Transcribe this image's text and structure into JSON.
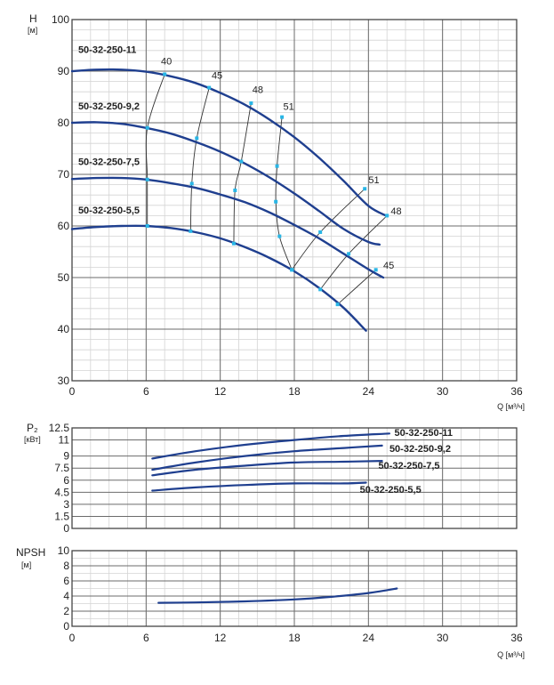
{
  "colors": {
    "curve": "#1f3f8f",
    "marker": "#29b6e6",
    "efficiency": "#333333",
    "grid_major": "#6b6b6b",
    "grid_minor": "#d4d4d4"
  },
  "chart_data": [
    {
      "id": "head",
      "type": "line",
      "y_title": "Н",
      "y_unit": "[м]",
      "x_title": "Q [м³/ч]",
      "xlim": [
        0,
        36
      ],
      "ylim": [
        30,
        100
      ],
      "x_ticks": [
        "0",
        "6",
        "12",
        "18",
        "24",
        "30",
        "36"
      ],
      "y_ticks": [
        "30",
        "40",
        "50",
        "60",
        "70",
        "80",
        "90",
        "100"
      ],
      "series": [
        {
          "name": "50-32-250-11",
          "x": [
            0,
            2,
            4,
            6,
            8,
            10,
            12,
            14,
            16,
            18,
            20,
            22,
            24,
            25.5
          ],
          "values": [
            90,
            90.3,
            90.3,
            89.9,
            89.0,
            87.7,
            85.8,
            83.5,
            80.6,
            77.2,
            73.2,
            68.7,
            63.9,
            61.9
          ],
          "label_value_x": 0.5,
          "label_value_y": 93.5
        },
        {
          "name": "50-32-250-9,2",
          "x": [
            0,
            2,
            4,
            6,
            8,
            10,
            12,
            14,
            16,
            18,
            20,
            22,
            24,
            24.9
          ],
          "values": [
            80,
            80.1,
            79.8,
            79.0,
            77.9,
            76.3,
            74.4,
            72.1,
            69.4,
            66.3,
            62.9,
            59.4,
            56.9,
            56.4
          ],
          "label_value_x": 0.5,
          "label_value_y": 82.6
        },
        {
          "name": "50-32-250-7,5",
          "x": [
            0,
            2,
            4,
            6,
            8,
            10,
            12,
            14,
            16,
            18,
            20,
            22,
            24,
            25.2
          ],
          "values": [
            69.1,
            69.3,
            69.3,
            69.0,
            68.3,
            67.4,
            66.1,
            64.6,
            62.6,
            60.2,
            57.6,
            54.6,
            51.6,
            50.0
          ],
          "label_value_x": 0.5,
          "label_value_y": 71.8
        },
        {
          "name": "50-32-250-5,5",
          "x": [
            0,
            2,
            4,
            6,
            8,
            10,
            12,
            14,
            16,
            18,
            20,
            22,
            23.8
          ],
          "values": [
            59.4,
            59.8,
            60.0,
            60.0,
            59.6,
            58.8,
            57.6,
            55.9,
            53.8,
            51.2,
            48.0,
            44.1,
            39.7
          ],
          "label_value_x": 0.5,
          "label_value_y": 62.4
        }
      ],
      "efficiency_points": [
        {
          "label": "40",
          "points": [
            [
              7.5,
              89.4
            ],
            [
              6.1,
              79.0
            ],
            [
              6.1,
              69.0
            ],
            [
              6.1,
              60.0
            ]
          ],
          "label_value_x": 7.2,
          "label_value_y": 91.3
        },
        {
          "label": "45",
          "points": [
            [
              11.1,
              86.8
            ],
            [
              10.1,
              77.0
            ],
            [
              9.7,
              68.2
            ],
            [
              9.6,
              59.0
            ]
          ],
          "label_value_x": 11.3,
          "label_value_y": 88.5
        },
        {
          "label": "48",
          "points": [
            [
              14.5,
              83.8
            ],
            [
              13.7,
              72.5
            ],
            [
              13.2,
              66.9
            ],
            [
              13.1,
              56.6
            ]
          ],
          "label_value_x": 14.6,
          "label_value_y": 85.8
        },
        {
          "label": "51",
          "points": [
            [
              17.0,
              81.1
            ],
            [
              16.6,
              71.6
            ],
            [
              16.5,
              64.7
            ],
            [
              16.8,
              58.0
            ],
            [
              17.8,
              51.5
            ]
          ],
          "label_value_x": 17.1,
          "label_value_y": 82.5
        },
        {
          "label": "51",
          "points": [
            [
              17.8,
              51.5
            ],
            [
              20.1,
              58.8
            ],
            [
              23.7,
              67.2
            ]
          ],
          "label_value_x": 24.0,
          "label_value_y": 68.3
        },
        {
          "label": "48",
          "points": [
            [
              20.1,
              47.7
            ],
            [
              22.4,
              54.6
            ],
            [
              25.5,
              62.0
            ]
          ],
          "label_value_x": 25.8,
          "label_value_y": 62.2
        },
        {
          "label": "45",
          "points": [
            [
              21.5,
              44.8
            ],
            [
              24.6,
              51.5
            ]
          ],
          "label_value_x": 25.2,
          "label_value_y": 51.7
        }
      ]
    },
    {
      "id": "power",
      "type": "line",
      "y_title": "P₂",
      "y_unit": "[кВт]",
      "xlim": [
        0,
        36
      ],
      "ylim": [
        0,
        12.5
      ],
      "y_ticks": [
        "0",
        "1.5",
        "3",
        "4.5",
        "6",
        "7.5",
        "9",
        "11",
        "12.5"
      ],
      "y_tick_values": [
        0,
        1.5,
        3,
        4.5,
        6,
        7.5,
        9,
        11,
        12.5
      ],
      "series": [
        {
          "name": "50-32-250-11",
          "x": [
            6.5,
            10,
            14,
            18,
            22,
            25.7
          ],
          "values": [
            8.7,
            9.6,
            10.4,
            11.0,
            11.5,
            11.8
          ],
          "label_value_x": 26.1,
          "label_value_y": 11.5
        },
        {
          "name": "50-32-250-9,2",
          "x": [
            6.5,
            10,
            14,
            18,
            22,
            25.1
          ],
          "values": [
            7.3,
            8.2,
            9.0,
            9.6,
            10.0,
            10.3
          ],
          "label_value_x": 25.7,
          "label_value_y": 9.5
        },
        {
          "name": "50-32-250-7,5",
          "x": [
            6.5,
            10,
            14,
            18,
            22,
            25.1
          ],
          "values": [
            6.6,
            7.3,
            7.8,
            8.2,
            8.3,
            8.4
          ],
          "label_value_x": 24.8,
          "label_value_y": 7.4
        },
        {
          "name": "50-32-250-5,5",
          "x": [
            6.5,
            10,
            14,
            18,
            22,
            23.8
          ],
          "values": [
            4.7,
            5.1,
            5.4,
            5.6,
            5.6,
            5.7
          ],
          "label_value_x": 23.3,
          "label_value_y": 4.4
        }
      ]
    },
    {
      "id": "npsh",
      "type": "line",
      "y_title": "NPSH",
      "y_unit": "[м]",
      "x_title": "Q [м³/ч]",
      "xlim": [
        0,
        36
      ],
      "ylim": [
        0,
        10
      ],
      "x_ticks": [
        "0",
        "6",
        "12",
        "18",
        "24",
        "30",
        "36"
      ],
      "y_ticks": [
        "0",
        "2",
        "4",
        "6",
        "8",
        "10"
      ],
      "series": [
        {
          "name": "NPSH",
          "x": [
            7,
            10,
            14,
            18,
            21,
            24,
            26.3
          ],
          "values": [
            3.1,
            3.15,
            3.3,
            3.55,
            3.9,
            4.4,
            5.0
          ]
        }
      ]
    }
  ]
}
